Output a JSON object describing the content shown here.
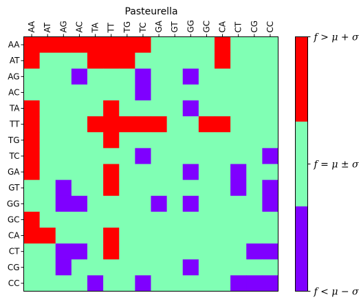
{
  "chart_data": {
    "type": "heatmap",
    "title": "Pasteurella",
    "x_categories": [
      "AA",
      "AT",
      "AG",
      "AC",
      "TA",
      "TT",
      "TG",
      "TC",
      "GA",
      "GT",
      "GG",
      "GC",
      "CA",
      "CT",
      "CG",
      "CC"
    ],
    "y_categories": [
      "AA",
      "AT",
      "AG",
      "AC",
      "TA",
      "TT",
      "TG",
      "TC",
      "GA",
      "GT",
      "GG",
      "GC",
      "CA",
      "CT",
      "CG",
      "CC"
    ],
    "x_tick_position": "top",
    "value_encoding": {
      "-1": "f < μ − σ",
      "0": "f = μ ± σ",
      "1": "f > μ + σ"
    },
    "values": [
      [
        1,
        1,
        1,
        1,
        1,
        1,
        1,
        1,
        0,
        0,
        0,
        0,
        1,
        0,
        0,
        0
      ],
      [
        1,
        0,
        0,
        0,
        1,
        1,
        1,
        0,
        0,
        0,
        0,
        0,
        1,
        0,
        0,
        0
      ],
      [
        0,
        0,
        0,
        -1,
        0,
        0,
        0,
        -1,
        0,
        0,
        -1,
        0,
        0,
        0,
        0,
        0
      ],
      [
        0,
        0,
        0,
        0,
        0,
        0,
        0,
        -1,
        0,
        0,
        0,
        0,
        0,
        0,
        0,
        0
      ],
      [
        1,
        0,
        0,
        0,
        0,
        1,
        0,
        0,
        0,
        0,
        -1,
        0,
        0,
        0,
        0,
        0
      ],
      [
        1,
        0,
        0,
        0,
        1,
        1,
        1,
        1,
        1,
        0,
        0,
        1,
        1,
        0,
        0,
        0
      ],
      [
        1,
        0,
        0,
        0,
        0,
        1,
        0,
        0,
        0,
        0,
        0,
        0,
        0,
        0,
        0,
        0
      ],
      [
        1,
        0,
        0,
        0,
        0,
        0,
        0,
        -1,
        0,
        0,
        0,
        0,
        0,
        0,
        0,
        -1
      ],
      [
        1,
        0,
        0,
        0,
        0,
        1,
        0,
        0,
        0,
        0,
        -1,
        0,
        0,
        -1,
        0,
        0
      ],
      [
        0,
        0,
        -1,
        0,
        0,
        1,
        0,
        0,
        0,
        0,
        0,
        0,
        0,
        -1,
        0,
        -1
      ],
      [
        0,
        0,
        -1,
        -1,
        0,
        0,
        0,
        0,
        -1,
        0,
        -1,
        0,
        0,
        0,
        0,
        -1
      ],
      [
        1,
        0,
        0,
        0,
        0,
        0,
        0,
        0,
        0,
        0,
        0,
        0,
        0,
        0,
        0,
        0
      ],
      [
        1,
        1,
        0,
        0,
        0,
        1,
        0,
        0,
        0,
        0,
        0,
        0,
        0,
        0,
        0,
        0
      ],
      [
        0,
        0,
        -1,
        -1,
        0,
        1,
        0,
        0,
        0,
        0,
        0,
        0,
        0,
        0,
        -1,
        -1
      ],
      [
        0,
        0,
        -1,
        0,
        0,
        0,
        0,
        0,
        0,
        0,
        -1,
        0,
        0,
        0,
        0,
        0
      ],
      [
        0,
        0,
        0,
        0,
        -1,
        0,
        0,
        -1,
        0,
        0,
        0,
        0,
        0,
        -1,
        -1,
        -1
      ]
    ],
    "colorbar": {
      "levels": [
        {
          "value": -1,
          "label": "f < μ − σ",
          "color": "#7f00ff"
        },
        {
          "value": 0,
          "label": "f = μ ± σ",
          "color": "#80ffb4"
        },
        {
          "value": 1,
          "label": "f > μ + σ",
          "color": "#ff0000"
        }
      ]
    },
    "grid": false
  }
}
